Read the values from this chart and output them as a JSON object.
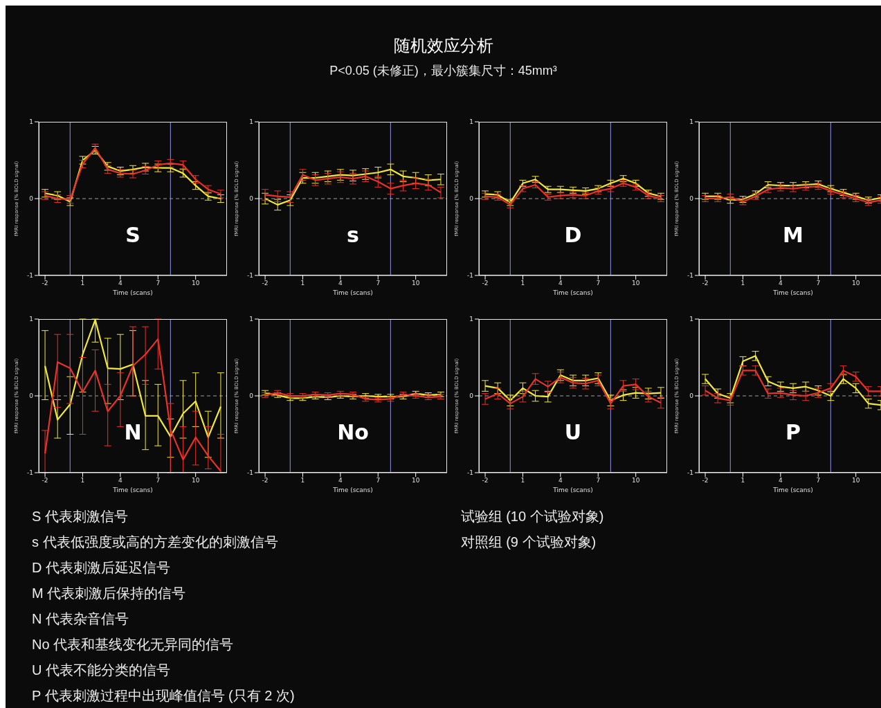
{
  "chart_data": [
    {
      "type": "other",
      "title": "随机效应分析",
      "subtitle": "P<0.05 (未修正)，最小簇集尺寸：45mm³",
      "annotations": [
        "S  代表刺激信号",
        "s  代表低强度或高的方差变化的刺激信号",
        "D  代表刺激后延迟信号",
        "M 代表刺激后保持的信号",
        "N  代表杂音信号",
        "No 代表和基线变化无异同的信号",
        "U  代表不能分类的信号",
        "P  代表刺激过程中出现峰值信号 (只有 2 次)",
        "试验组 (10 个试验对象)",
        "对照组 (9 个试验对象)"
      ]
    },
    {
      "type": "line",
      "title": "S",
      "xlabel": "Time (scans)",
      "ylabel": "fMRI response (% BOLD signal)",
      "x": [
        -2,
        -1,
        0,
        1,
        2,
        3,
        4,
        5,
        6,
        7,
        8,
        9,
        10,
        11,
        12
      ],
      "xlim": [
        -2.5,
        12.5
      ],
      "xticks": [
        -2,
        1,
        4,
        7,
        10
      ],
      "ylim": [
        -1,
        1
      ],
      "yticks": [
        -1,
        0,
        1
      ],
      "marker": "none",
      "ref_lines": [
        {
          "axis": "x",
          "value": 0,
          "color": "#7c7cc4"
        },
        {
          "axis": "x",
          "value": 8,
          "color": "#7c7cc4"
        },
        {
          "axis": "y",
          "value": 0,
          "color": "#a0a0a0",
          "line_style": "dashed"
        }
      ],
      "series": [
        {
          "color": "#f2e83c",
          "values": [
            0.07,
            0.04,
            -0.04,
            0.5,
            0.63,
            0.42,
            0.36,
            0.38,
            0.41,
            0.4,
            0.4,
            0.33,
            0.17,
            0.03,
            0.0
          ],
          "errors": [
            0.05,
            0.05,
            0.05,
            0.05,
            0.05,
            0.05,
            0.05,
            0.05,
            0.05,
            0.05,
            0.05,
            0.05,
            0.05,
            0.05,
            0.05
          ]
        },
        {
          "color": "#e8322a",
          "values": [
            0.04,
            0.0,
            -0.01,
            0.45,
            0.66,
            0.38,
            0.33,
            0.32,
            0.37,
            0.44,
            0.46,
            0.44,
            0.25,
            0.12,
            0.06
          ],
          "errors": [
            0.05,
            0.05,
            0.05,
            0.05,
            0.05,
            0.05,
            0.05,
            0.05,
            0.05,
            0.05,
            0.05,
            0.05,
            0.05,
            0.05,
            0.05
          ]
        }
      ]
    },
    {
      "type": "line",
      "title": "s",
      "xlabel": "Time (scans)",
      "ylabel": "fMRI response (% BOLD signal)",
      "x": [
        -2,
        -1,
        0,
        1,
        2,
        3,
        4,
        5,
        6,
        7,
        8,
        9,
        10,
        11,
        12
      ],
      "xlim": [
        -2.5,
        12.5
      ],
      "xticks": [
        -2,
        1,
        4,
        7,
        10
      ],
      "ylim": [
        -1,
        1
      ],
      "yticks": [
        -1,
        0,
        1
      ],
      "marker": "none",
      "ref_lines": [
        {
          "axis": "x",
          "value": 0,
          "color": "#7c7cc4"
        },
        {
          "axis": "x",
          "value": 8,
          "color": "#7c7cc4"
        },
        {
          "axis": "y",
          "value": 0,
          "color": "#a0a0a0",
          "line_style": "dashed"
        }
      ],
      "series": [
        {
          "color": "#f2e83c",
          "values": [
            0.0,
            -0.08,
            -0.02,
            0.27,
            0.27,
            0.29,
            0.31,
            0.3,
            0.32,
            0.34,
            0.38,
            0.29,
            0.27,
            0.24,
            0.25
          ],
          "errors": [
            0.07,
            0.07,
            0.07,
            0.07,
            0.07,
            0.07,
            0.07,
            0.07,
            0.07,
            0.07,
            0.07,
            0.07,
            0.07,
            0.07,
            0.07
          ]
        },
        {
          "color": "#e8322a",
          "values": [
            0.05,
            0.03,
            0.02,
            0.31,
            0.24,
            0.26,
            0.28,
            0.26,
            0.29,
            0.22,
            0.13,
            0.17,
            0.2,
            0.18,
            0.08
          ],
          "errors": [
            0.07,
            0.07,
            0.07,
            0.07,
            0.07,
            0.07,
            0.07,
            0.07,
            0.07,
            0.07,
            0.07,
            0.07,
            0.07,
            0.07,
            0.07
          ]
        }
      ]
    },
    {
      "type": "line",
      "title": "D",
      "xlabel": "Time (scans)",
      "ylabel": "fMRI response (% BOLD signal)",
      "x": [
        -2,
        -1,
        0,
        1,
        2,
        3,
        4,
        5,
        6,
        7,
        8,
        9,
        10,
        11,
        12
      ],
      "xlim": [
        -2.5,
        12.5
      ],
      "xticks": [
        -2,
        1,
        4,
        7,
        10
      ],
      "ylim": [
        -1,
        1
      ],
      "yticks": [
        -1,
        0,
        1
      ],
      "marker": "none",
      "ref_lines": [
        {
          "axis": "x",
          "value": 0,
          "color": "#7c7cc4"
        },
        {
          "axis": "x",
          "value": 8,
          "color": "#7c7cc4"
        },
        {
          "axis": "y",
          "value": 0,
          "color": "#a0a0a0",
          "line_style": "dashed"
        }
      ],
      "series": [
        {
          "color": "#f2e83c",
          "values": [
            0.06,
            0.05,
            -0.05,
            0.2,
            0.25,
            0.12,
            0.12,
            0.11,
            0.1,
            0.13,
            0.2,
            0.26,
            0.2,
            0.07,
            0.03
          ],
          "errors": [
            0.04,
            0.04,
            0.04,
            0.04,
            0.04,
            0.04,
            0.04,
            0.04,
            0.04,
            0.04,
            0.04,
            0.04,
            0.04,
            0.04,
            0.04
          ]
        },
        {
          "color": "#e8322a",
          "values": [
            0.03,
            0.02,
            -0.08,
            0.13,
            0.18,
            0.02,
            0.04,
            0.05,
            0.04,
            0.1,
            0.13,
            0.2,
            0.15,
            0.04,
            0.0
          ],
          "errors": [
            0.04,
            0.04,
            0.04,
            0.04,
            0.04,
            0.04,
            0.04,
            0.04,
            0.04,
            0.04,
            0.04,
            0.04,
            0.04,
            0.04,
            0.04
          ]
        }
      ]
    },
    {
      "type": "line",
      "title": "M",
      "xlabel": "Time (scans)",
      "ylabel": "fMRI response (% BOLD signal)",
      "x": [
        -2,
        -1,
        0,
        1,
        2,
        3,
        4,
        5,
        6,
        7,
        8,
        9,
        10,
        11,
        12
      ],
      "xlim": [
        -2.5,
        12.5
      ],
      "xticks": [
        -2,
        1,
        4,
        7,
        10
      ],
      "ylim": [
        -1,
        1
      ],
      "yticks": [
        -1,
        0,
        1
      ],
      "marker": "none",
      "ref_lines": [
        {
          "axis": "x",
          "value": 0,
          "color": "#7c7cc4"
        },
        {
          "axis": "x",
          "value": 8,
          "color": "#7c7cc4"
        },
        {
          "axis": "y",
          "value": 0,
          "color": "#a0a0a0",
          "line_style": "dashed"
        }
      ],
      "series": [
        {
          "color": "#f2e83c",
          "values": [
            0.03,
            0.03,
            -0.02,
            -0.01,
            0.06,
            0.18,
            0.17,
            0.17,
            0.18,
            0.19,
            0.13,
            0.08,
            0.03,
            -0.02,
            0.01
          ],
          "errors": [
            0.04,
            0.04,
            0.04,
            0.04,
            0.04,
            0.04,
            0.04,
            0.04,
            0.04,
            0.04,
            0.04,
            0.04,
            0.04,
            0.04,
            0.04
          ]
        },
        {
          "color": "#e8322a",
          "values": [
            0.0,
            0.0,
            0.02,
            -0.04,
            0.03,
            0.12,
            0.14,
            0.13,
            0.15,
            0.16,
            0.1,
            0.05,
            0.0,
            -0.05,
            -0.02
          ],
          "errors": [
            0.04,
            0.04,
            0.04,
            0.04,
            0.04,
            0.04,
            0.04,
            0.04,
            0.04,
            0.04,
            0.04,
            0.04,
            0.04,
            0.04,
            0.04
          ]
        }
      ]
    },
    {
      "type": "line",
      "title": "N",
      "xlabel": "Time (scans)",
      "ylabel": "fMRI response (% BOLD signal)",
      "x": [
        -2,
        -1,
        0,
        1,
        2,
        3,
        4,
        5,
        6,
        7,
        8,
        9,
        10,
        11,
        12
      ],
      "xlim": [
        -2.5,
        12.5
      ],
      "xticks": [
        -2,
        1,
        4,
        7,
        10
      ],
      "ylim": [
        -1,
        1
      ],
      "yticks": [
        -1,
        0,
        1
      ],
      "marker": "none",
      "ref_lines": [
        {
          "axis": "x",
          "value": 0,
          "color": "#7c7cc4"
        },
        {
          "axis": "x",
          "value": 8,
          "color": "#7c7cc4"
        },
        {
          "axis": "y",
          "value": 0,
          "color": "#a0a0a0",
          "line_style": "dashed"
        }
      ],
      "series": [
        {
          "color": "#f2e83c",
          "values": [
            0.39,
            -0.31,
            -0.11,
            0.54,
            0.99,
            0.36,
            0.35,
            0.41,
            -0.26,
            -0.26,
            -0.53,
            -0.23,
            -0.07,
            -0.54,
            -0.14
          ],
          "errors": [
            [
              -0.05,
              0.85
            ],
            [
              -0.55,
              -0.05
            ],
            [
              -0.5,
              0.25
            ],
            [
              0.05,
              1.0
            ],
            [
              0.7,
              1.0
            ],
            [
              -0.1,
              0.75
            ],
            [
              -0.05,
              0.8
            ],
            [
              0.0,
              0.85
            ],
            [
              -0.7,
              0.2
            ],
            [
              -0.65,
              0.15
            ],
            [
              -0.8,
              -0.3
            ],
            [
              -0.55,
              0.2
            ],
            [
              -0.4,
              0.3
            ],
            [
              -0.8,
              -0.2
            ],
            [
              -0.55,
              0.3
            ]
          ]
        },
        {
          "color": "#e8322a",
          "values": [
            -0.75,
            0.44,
            0.36,
            0.05,
            0.33,
            -0.2,
            0.0,
            0.39,
            0.54,
            0.74,
            -0.44,
            -0.83,
            -0.54,
            -0.78,
            -0.98
          ],
          "errors": [
            [
              -1.0,
              -0.45
            ],
            [
              -0.15,
              0.8
            ],
            [
              -0.1,
              0.8
            ],
            [
              -0.5,
              0.5
            ],
            [
              -0.2,
              0.6
            ],
            [
              -0.65,
              0.15
            ],
            [
              -0.4,
              0.3
            ],
            [
              0.0,
              0.9
            ],
            [
              0.15,
              0.9
            ],
            [
              0.35,
              1.0
            ],
            [
              -1.0,
              -0.1
            ],
            [
              -1.0,
              -0.4
            ],
            [
              -0.9,
              -0.2
            ],
            [
              -0.95,
              -0.4
            ],
            [
              -1.0,
              -0.5
            ]
          ]
        }
      ]
    },
    {
      "type": "line",
      "title": "No",
      "xlabel": "Time (scans)",
      "ylabel": "fMRI response (% BOLD signal)",
      "x": [
        -2,
        -1,
        0,
        1,
        2,
        3,
        4,
        5,
        6,
        7,
        8,
        9,
        10,
        11,
        12
      ],
      "xlim": [
        -2.5,
        12.5
      ],
      "xticks": [
        -2,
        1,
        4,
        7,
        10
      ],
      "ylim": [
        -1,
        1
      ],
      "yticks": [
        -1,
        0,
        1
      ],
      "marker": "none",
      "ref_lines": [
        {
          "axis": "x",
          "value": 0,
          "color": "#7c7cc4"
        },
        {
          "axis": "x",
          "value": 8,
          "color": "#7c7cc4"
        },
        {
          "axis": "y",
          "value": 0,
          "color": "#a0a0a0",
          "line_style": "dashed"
        }
      ],
      "series": [
        {
          "color": "#f2e83c",
          "values": [
            0.04,
            0.01,
            -0.03,
            -0.03,
            -0.01,
            -0.02,
            0.0,
            -0.01,
            0.0,
            -0.01,
            -0.01,
            -0.01,
            0.03,
            0.01,
            0.02
          ],
          "errors": [
            0.03,
            0.03,
            0.03,
            0.03,
            0.03,
            0.03,
            0.03,
            0.03,
            0.03,
            0.03,
            0.03,
            0.03,
            0.03,
            0.03,
            0.03
          ]
        },
        {
          "color": "#e8322a",
          "values": [
            0.01,
            0.04,
            0.0,
            0.0,
            0.02,
            0.01,
            0.03,
            0.02,
            -0.04,
            -0.05,
            -0.04,
            0.02,
            0.0,
            -0.02,
            -0.01
          ],
          "errors": [
            0.03,
            0.03,
            0.03,
            0.03,
            0.03,
            0.03,
            0.03,
            0.03,
            0.03,
            0.03,
            0.03,
            0.03,
            0.03,
            0.03,
            0.03
          ]
        }
      ]
    },
    {
      "type": "line",
      "title": "U",
      "xlabel": "Time (scans)",
      "ylabel": "fMRI response (% BOLD signal)",
      "x": [
        -2,
        -1,
        0,
        1,
        2,
        3,
        4,
        5,
        6,
        7,
        8,
        9,
        10,
        11,
        12
      ],
      "xlim": [
        -2.5,
        12.5
      ],
      "xticks": [
        -2,
        1,
        4,
        7,
        10
      ],
      "ylim": [
        -1,
        1
      ],
      "yticks": [
        -1,
        0,
        1
      ],
      "marker": "none",
      "ref_lines": [
        {
          "axis": "x",
          "value": 0,
          "color": "#7c7cc4"
        },
        {
          "axis": "x",
          "value": 8,
          "color": "#7c7cc4"
        },
        {
          "axis": "y",
          "value": 0,
          "color": "#a0a0a0",
          "line_style": "dashed"
        }
      ],
      "series": [
        {
          "color": "#f2e83c",
          "values": [
            0.13,
            0.1,
            -0.06,
            0.1,
            0.0,
            -0.01,
            0.27,
            0.2,
            0.2,
            0.23,
            -0.06,
            0.01,
            0.04,
            0.03,
            0.04
          ],
          "errors": [
            0.07,
            0.07,
            0.07,
            0.07,
            0.07,
            0.07,
            0.07,
            0.07,
            0.07,
            0.07,
            0.07,
            0.07,
            0.07,
            0.07,
            0.07
          ]
        },
        {
          "color": "#e8322a",
          "values": [
            -0.04,
            0.03,
            -0.1,
            -0.01,
            0.22,
            0.12,
            0.24,
            0.17,
            0.16,
            0.2,
            -0.1,
            0.13,
            0.15,
            -0.01,
            -0.09
          ],
          "errors": [
            0.07,
            0.07,
            0.07,
            0.07,
            0.07,
            0.07,
            0.07,
            0.07,
            0.07,
            0.07,
            0.07,
            0.07,
            0.07,
            0.07,
            0.07
          ]
        }
      ]
    },
    {
      "type": "line",
      "title": "P",
      "xlabel": "Time (scans)",
      "ylabel": "fMRI response (% BOLD signal)",
      "x": [
        -2,
        -1,
        0,
        1,
        2,
        3,
        4,
        5,
        6,
        7,
        8,
        9,
        10,
        11,
        12
      ],
      "xlim": [
        -2.5,
        12.5
      ],
      "xticks": [
        -2,
        1,
        4,
        7,
        10
      ],
      "ylim": [
        -1,
        1
      ],
      "yticks": [
        -1,
        0,
        1
      ],
      "marker": "none",
      "ref_lines": [
        {
          "axis": "x",
          "value": 0,
          "color": "#7c7cc4"
        },
        {
          "axis": "x",
          "value": 8,
          "color": "#7c7cc4"
        },
        {
          "axis": "y",
          "value": 0,
          "color": "#a0a0a0",
          "line_style": "dashed"
        }
      ],
      "series": [
        {
          "color": "#f2e83c",
          "values": [
            0.22,
            0.03,
            -0.03,
            0.45,
            0.52,
            0.19,
            0.12,
            0.1,
            0.12,
            0.07,
            0.0,
            0.22,
            0.1,
            -0.1,
            -0.12
          ],
          "errors": [
            0.06,
            0.06,
            0.06,
            0.06,
            0.06,
            0.06,
            0.06,
            0.06,
            0.06,
            0.06,
            0.06,
            0.06,
            0.06,
            0.06,
            0.06
          ]
        },
        {
          "color": "#e8322a",
          "values": [
            0.07,
            -0.03,
            -0.06,
            0.33,
            0.33,
            0.03,
            0.04,
            0.01,
            0.0,
            0.04,
            0.1,
            0.33,
            0.25,
            0.06,
            0.06
          ],
          "errors": [
            0.06,
            0.06,
            0.06,
            0.06,
            0.06,
            0.06,
            0.06,
            0.06,
            0.06,
            0.06,
            0.06,
            0.06,
            0.06,
            0.06,
            0.06
          ]
        }
      ]
    }
  ]
}
